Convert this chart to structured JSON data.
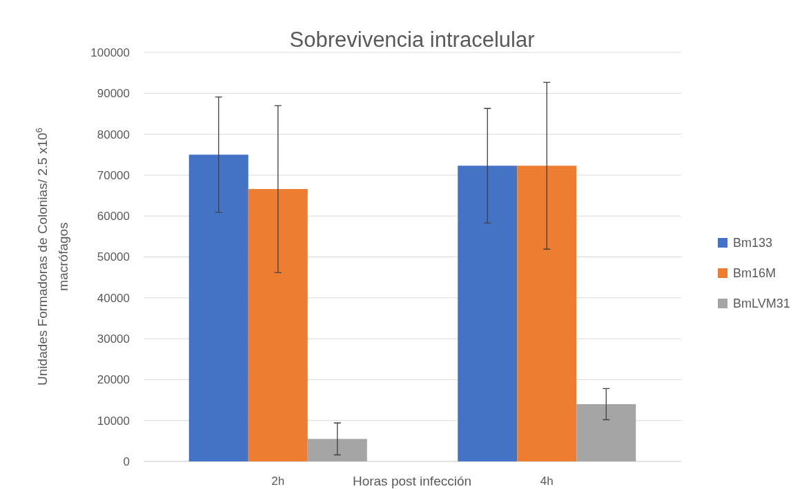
{
  "chart_data": {
    "type": "bar",
    "title": "Sobrevivencia intracelular",
    "xlabel": "Horas post infección",
    "ylabel": "Unidades Formadoras de Colonias/ 2.5 x10$^{6}$ macrófagos",
    "categories": [
      "2h",
      "4h"
    ],
    "series": [
      {
        "name": "Bm133",
        "color": "#4472c4",
        "values": [
          75000,
          72300
        ],
        "errors": [
          14100,
          14000
        ]
      },
      {
        "name": "Bm16M",
        "color": "#ed7d31",
        "values": [
          66600,
          72300
        ],
        "errors": [
          20400,
          20400
        ]
      },
      {
        "name": "BmLVM31",
        "color": "#a5a5a5",
        "values": [
          5500,
          14000
        ],
        "errors": [
          3900,
          3800
        ]
      }
    ],
    "ylim": [
      0,
      100000
    ],
    "yticks": [
      0,
      10000,
      20000,
      30000,
      40000,
      50000,
      60000,
      70000,
      80000,
      90000,
      100000
    ],
    "grid": "y",
    "legend": "right"
  }
}
